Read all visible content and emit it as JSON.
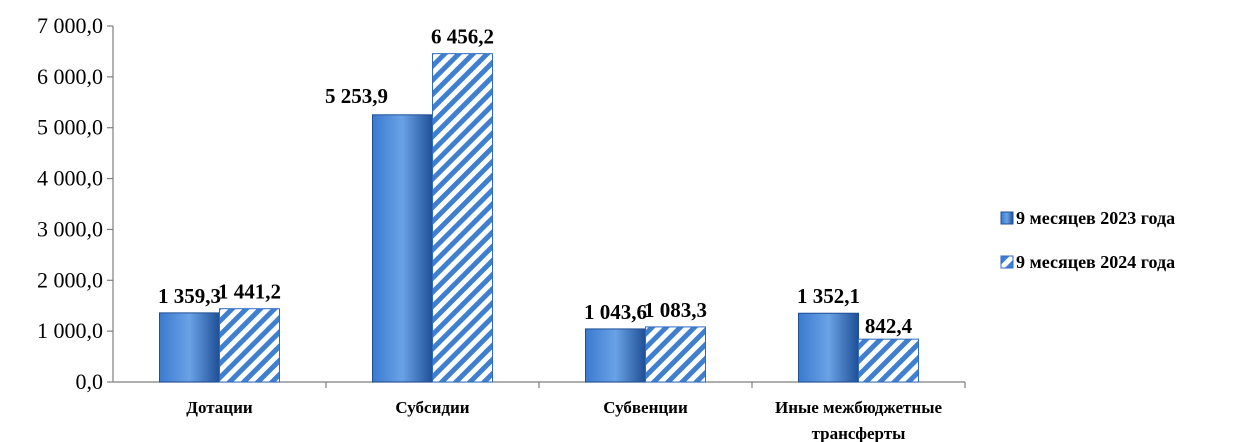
{
  "chart_data": {
    "type": "bar",
    "categories": [
      "Дотации",
      "Субсидии",
      "Субвенции",
      "Иные межбюджетные трансферты"
    ],
    "series": [
      {
        "name": "9 месяцев 2023 года",
        "values": [
          1359.3,
          5253.9,
          1043.6,
          1352.1
        ],
        "labels": [
          "1 359,3",
          "5 253,9",
          "1 043,6",
          "1 352,1"
        ],
        "color": "#2e6bc0",
        "pattern": "solid"
      },
      {
        "name": "9 месяцев 2024 года",
        "values": [
          1441.2,
          6456.2,
          1083.3,
          842.4
        ],
        "labels": [
          "1 441,2",
          "6 456,2",
          "1 083,3",
          "842,4"
        ],
        "color": "#3f7fd0",
        "pattern": "diagonal-stripes"
      }
    ],
    "ylim": [
      0,
      7000
    ],
    "yticks": [
      0,
      1000,
      2000,
      3000,
      4000,
      5000,
      6000,
      7000
    ],
    "ytick_labels": [
      "0,0",
      "1 000,0",
      "2 000,0",
      "3 000,0",
      "4 000,0",
      "5 000,0",
      "6 000,0",
      "7 000,0"
    ],
    "grid": false,
    "legend_position": "right"
  }
}
